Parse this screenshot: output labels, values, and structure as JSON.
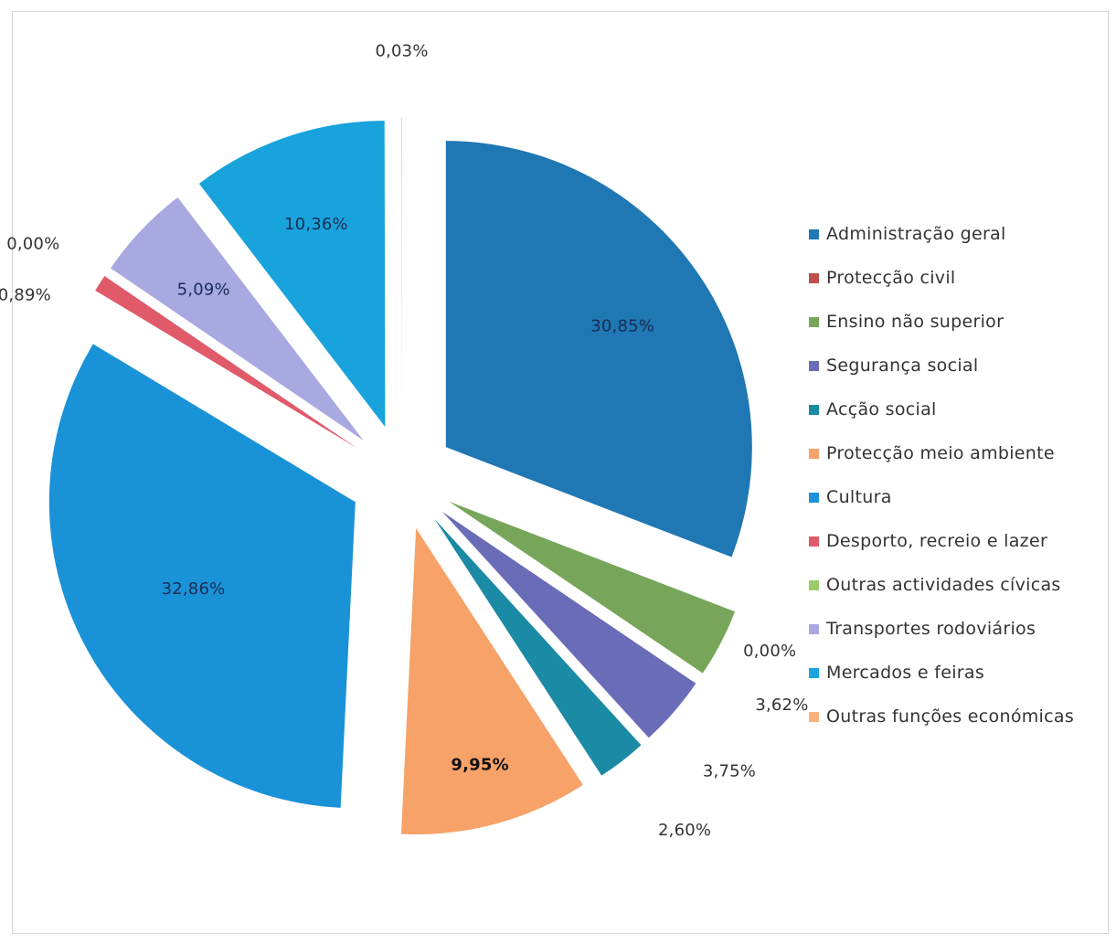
{
  "chart_data": {
    "type": "pie",
    "title": "",
    "legend_position": "right",
    "series": [
      {
        "name": "Administração geral",
        "value": 30.85,
        "label": "30,85%",
        "color": "#1f77b4",
        "label_color": "#1a2c55",
        "label_bold": false
      },
      {
        "name": "Protecção civil",
        "value": 0.0,
        "label": "",
        "color": "#c0504d",
        "label_color": "#333333",
        "label_bold": false
      },
      {
        "name": "Ensino não superior",
        "value": 3.62,
        "label": "3,62%",
        "color": "#77a65a",
        "label_color": "#333333",
        "label_bold": false
      },
      {
        "name": "Segurança social",
        "value": 3.75,
        "label": "3,75%",
        "color": "#6b6cb8",
        "label_color": "#333333",
        "label_bold": false
      },
      {
        "name": "Acção social",
        "value": 2.6,
        "label": "2,60%",
        "color": "#1b8aa4",
        "label_color": "#333333",
        "label_bold": false
      },
      {
        "name": "Protecção meio ambiente",
        "value": 9.95,
        "label": "9,95%",
        "color": "#f7a268",
        "label_color": "#111111",
        "label_bold": true
      },
      {
        "name": "Cultura",
        "value": 32.86,
        "label": "32,86%",
        "color": "#1a92d8",
        "label_color": "#1a2c55",
        "label_bold": false
      },
      {
        "name": "Desporto, recreio e lazer",
        "value": 0.89,
        "label": "0,89%",
        "color": "#e05a6a",
        "label_color": "#333333",
        "label_bold": false
      },
      {
        "name": "Outras actividades cívicas",
        "value": 0.0,
        "label": "0,00%",
        "color": "#9bcb6b",
        "label_color": "#333333",
        "label_bold": false
      },
      {
        "name": "Transportes rodoviários",
        "value": 5.09,
        "label": "5,09%",
        "color": "#a8a9e0",
        "label_color": "#1a2c55",
        "label_bold": false
      },
      {
        "name": "Mercados e feiras",
        "value": 10.36,
        "label": "10,36%",
        "color": "#18a3dc",
        "label_color": "#1a2c55",
        "label_bold": false
      },
      {
        "name": "Outras funções económicas",
        "value": 0.03,
        "label": "0,03%",
        "color": "#f9b27a",
        "label_color": "#333333",
        "label_bold": false
      }
    ],
    "extra_labels": [
      "0,00%"
    ]
  }
}
